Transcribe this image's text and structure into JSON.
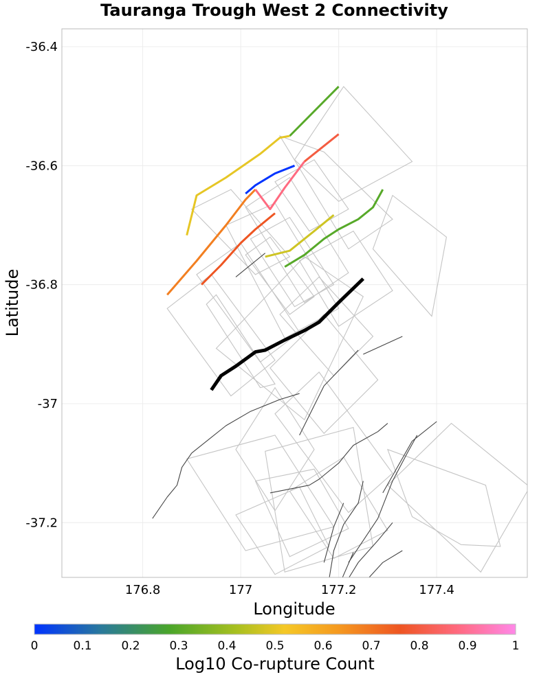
{
  "chart_data": {
    "type": "map",
    "title": "Tauranga Trough West 2 Connectivity",
    "xlabel": "Longitude",
    "ylabel": "Latitude",
    "xlim": [
      176.635,
      177.585
    ],
    "ylim": [
      -37.292,
      -36.37
    ],
    "x_ticks": [
      176.8,
      177.0,
      177.2,
      177.4
    ],
    "x_tick_labels": [
      "176.8",
      "177",
      "177.2",
      "177.4"
    ],
    "y_ticks": [
      -36.4,
      -36.6,
      -36.8,
      -37.0,
      -37.2
    ],
    "y_tick_labels": [
      "-36.4",
      "-36.6",
      "-36.8",
      "-37",
      "-37.2"
    ],
    "grid": true,
    "colorbar": {
      "label": "Log10 Co-rupture Count",
      "range": [
        0,
        1
      ],
      "ticks": [
        "0",
        "0.1",
        "0.2",
        "0.3",
        "0.4",
        "0.5",
        "0.6",
        "0.7",
        "0.8",
        "0.9",
        "1"
      ],
      "stops": [
        {
          "v": 0.0,
          "color": "#0033ff"
        },
        {
          "v": 0.14,
          "color": "#2a7a9a"
        },
        {
          "v": 0.28,
          "color": "#4aa52a"
        },
        {
          "v": 0.42,
          "color": "#a8c020"
        },
        {
          "v": 0.52,
          "color": "#f5c826"
        },
        {
          "v": 0.63,
          "color": "#f59a20"
        },
        {
          "v": 0.76,
          "color": "#ee5522"
        },
        {
          "v": 0.88,
          "color": "#ff6a80"
        },
        {
          "v": 1.0,
          "color": "#ff88e8"
        }
      ]
    },
    "highlighted_fault": {
      "name": "Tauranga Trough West 2",
      "color": "#000000",
      "trace": [
        [
          176.94,
          -36.977
        ],
        [
          176.96,
          -36.953
        ],
        [
          176.99,
          -36.937
        ],
        [
          177.03,
          -36.913
        ],
        [
          177.05,
          -36.91
        ],
        [
          177.09,
          -36.893
        ],
        [
          177.13,
          -36.877
        ],
        [
          177.16,
          -36.863
        ],
        [
          177.2,
          -36.83
        ],
        [
          177.25,
          -36.79
        ]
      ]
    },
    "connected_faults": [
      {
        "value": 0.3,
        "trace": [
          [
            177.1,
            -36.55
          ],
          [
            177.2,
            -36.467
          ]
        ]
      },
      {
        "value": 0.5,
        "trace": [
          [
            176.89,
            -36.717
          ],
          [
            176.91,
            -36.65
          ],
          [
            176.97,
            -36.62
          ],
          [
            177.04,
            -36.58
          ],
          [
            177.08,
            -36.553
          ],
          [
            177.1,
            -36.55
          ]
        ]
      },
      {
        "value": 0.0,
        "trace": [
          [
            177.01,
            -36.647
          ],
          [
            177.03,
            -36.633
          ],
          [
            177.07,
            -36.613
          ],
          [
            177.11,
            -36.6
          ]
        ]
      },
      {
        "value": 0.68,
        "trace": [
          [
            176.85,
            -36.817
          ],
          [
            176.91,
            -36.76
          ],
          [
            176.97,
            -36.7
          ],
          [
            177.01,
            -36.657
          ],
          [
            177.03,
            -36.64
          ]
        ]
      },
      {
        "value": 0.88,
        "trace": [
          [
            177.03,
            -36.64
          ],
          [
            177.06,
            -36.673
          ],
          [
            177.09,
            -36.637
          ],
          [
            177.13,
            -36.593
          ]
        ]
      },
      {
        "value": 0.8,
        "trace": [
          [
            177.13,
            -36.593
          ],
          [
            177.2,
            -36.547
          ]
        ]
      },
      {
        "value": 0.76,
        "trace": [
          [
            176.92,
            -36.8
          ],
          [
            176.96,
            -36.767
          ],
          [
            177.0,
            -36.73
          ],
          [
            177.03,
            -36.707
          ],
          [
            177.07,
            -36.68
          ]
        ]
      },
      {
        "value": 0.47,
        "trace": [
          [
            177.05,
            -36.753
          ],
          [
            177.1,
            -36.743
          ],
          [
            177.15,
            -36.71
          ],
          [
            177.19,
            -36.683
          ]
        ]
      },
      {
        "value": 0.3,
        "trace": [
          [
            177.09,
            -36.77
          ],
          [
            177.13,
            -36.75
          ],
          [
            177.17,
            -36.723
          ],
          [
            177.2,
            -36.707
          ],
          [
            177.24,
            -36.69
          ],
          [
            177.27,
            -36.67
          ],
          [
            177.29,
            -36.64
          ]
        ]
      }
    ],
    "gray_faults": [
      [
        [
          176.99,
          -36.787
        ],
        [
          177.05,
          -36.747
        ]
      ],
      [
        [
          177.25,
          -36.917
        ],
        [
          177.33,
          -36.887
        ]
      ],
      [
        [
          177.17,
          -36.97
        ],
        [
          177.24,
          -36.91
        ]
      ],
      [
        [
          177.12,
          -37.053
        ],
        [
          177.17,
          -36.97
        ]
      ],
      [
        [
          176.9,
          -37.083
        ],
        [
          176.97,
          -37.037
        ],
        [
          177.02,
          -37.013
        ],
        [
          177.08,
          -36.993
        ],
        [
          177.12,
          -36.983
        ]
      ],
      [
        [
          176.82,
          -37.193
        ],
        [
          176.85,
          -37.157
        ],
        [
          176.87,
          -37.137
        ],
        [
          176.88,
          -37.107
        ],
        [
          176.9,
          -37.083
        ]
      ],
      [
        [
          177.06,
          -37.15
        ],
        [
          177.14,
          -37.137
        ],
        [
          177.16,
          -37.127
        ],
        [
          177.2,
          -37.1
        ],
        [
          177.23,
          -37.07
        ],
        [
          177.28,
          -37.047
        ],
        [
          177.3,
          -37.033
        ]
      ],
      [
        [
          177.17,
          -37.267
        ],
        [
          177.19,
          -37.207
        ],
        [
          177.21,
          -37.167
        ]
      ],
      [
        [
          177.18,
          -37.297
        ],
        [
          177.19,
          -37.247
        ],
        [
          177.21,
          -37.203
        ],
        [
          177.24,
          -37.167
        ],
        [
          177.25,
          -37.13
        ]
      ],
      [
        [
          177.2,
          -37.307
        ],
        [
          177.23,
          -37.25
        ]
      ],
      [
        [
          177.22,
          -37.267
        ],
        [
          177.25,
          -37.23
        ],
        [
          177.28,
          -37.193
        ],
        [
          177.31,
          -37.13
        ],
        [
          177.34,
          -37.083
        ],
        [
          177.36,
          -37.053
        ]
      ],
      [
        [
          177.21,
          -37.307
        ],
        [
          177.24,
          -37.267
        ],
        [
          177.28,
          -37.23
        ],
        [
          177.31,
          -37.2
        ]
      ],
      [
        [
          177.25,
          -37.303
        ],
        [
          177.29,
          -37.267
        ],
        [
          177.33,
          -37.247
        ]
      ],
      [
        [
          177.29,
          -37.15
        ],
        [
          177.35,
          -37.063
        ],
        [
          177.4,
          -37.03
        ]
      ]
    ],
    "rupture_boxes": [
      [
        [
          177.21,
          -36.467
        ],
        [
          177.35,
          -36.593
        ],
        [
          177.2,
          -36.66
        ],
        [
          177.11,
          -36.59
        ]
      ],
      [
        [
          177.08,
          -36.55
        ],
        [
          177.22,
          -36.74
        ],
        [
          177.31,
          -36.69
        ],
        [
          177.17,
          -36.577
        ]
      ],
      [
        [
          176.97,
          -36.7
        ],
        [
          177.09,
          -36.89
        ],
        [
          177.2,
          -36.84
        ],
        [
          177.07,
          -36.663
        ]
      ],
      [
        [
          176.91,
          -36.783
        ],
        [
          177.04,
          -36.93
        ],
        [
          177.12,
          -36.88
        ],
        [
          177.0,
          -36.73
        ]
      ],
      [
        [
          177.01,
          -36.75
        ],
        [
          177.1,
          -36.85
        ],
        [
          177.15,
          -36.82
        ],
        [
          177.06,
          -36.72
        ]
      ],
      [
        [
          177.12,
          -36.76
        ],
        [
          177.2,
          -36.87
        ],
        [
          177.31,
          -36.81
        ],
        [
          177.23,
          -36.71
        ]
      ],
      [
        [
          176.9,
          -36.673
        ],
        [
          177.03,
          -36.783
        ],
        [
          177.1,
          -36.753
        ],
        [
          176.98,
          -36.64
        ]
      ],
      [
        [
          176.85,
          -36.84
        ],
        [
          176.98,
          -36.987
        ],
        [
          177.07,
          -36.927
        ],
        [
          176.94,
          -36.783
        ]
      ],
      [
        [
          176.93,
          -36.833
        ],
        [
          177.04,
          -36.973
        ],
        [
          177.07,
          -36.967
        ],
        [
          176.95,
          -36.817
        ]
      ],
      [
        [
          177.07,
          -36.627
        ],
        [
          177.14,
          -36.71
        ],
        [
          177.22,
          -36.673
        ],
        [
          177.15,
          -36.59
        ]
      ],
      [
        [
          177.02,
          -36.723
        ],
        [
          177.11,
          -36.837
        ],
        [
          177.19,
          -36.8
        ],
        [
          177.1,
          -36.687
        ]
      ],
      [
        [
          176.95,
          -36.907
        ],
        [
          177.13,
          -37.027
        ],
        [
          177.25,
          -36.82
        ],
        [
          177.13,
          -36.753
        ]
      ],
      [
        [
          177.27,
          -36.74
        ],
        [
          177.39,
          -36.853
        ],
        [
          177.42,
          -36.72
        ],
        [
          177.31,
          -36.65
        ]
      ],
      [
        [
          177.08,
          -36.85
        ],
        [
          177.19,
          -36.953
        ],
        [
          177.27,
          -36.887
        ],
        [
          177.16,
          -36.787
        ]
      ],
      [
        [
          177.01,
          -36.67
        ],
        [
          177.13,
          -36.83
        ],
        [
          177.22,
          -36.78
        ],
        [
          177.1,
          -36.62
        ]
      ],
      [
        [
          177.06,
          -36.94
        ],
        [
          177.17,
          -37.05
        ],
        [
          177.28,
          -36.96
        ],
        [
          177.17,
          -36.85
        ]
      ],
      [
        [
          176.99,
          -37.077
        ],
        [
          177.07,
          -37.18
        ],
        [
          177.15,
          -37.077
        ],
        [
          177.07,
          -36.973
        ]
      ],
      [
        [
          177.07,
          -37.017
        ],
        [
          177.22,
          -37.183
        ],
        [
          177.31,
          -37.117
        ],
        [
          177.16,
          -36.947
        ]
      ],
      [
        [
          177.05,
          -37.08
        ],
        [
          177.09,
          -37.283
        ],
        [
          177.27,
          -37.24
        ],
        [
          177.23,
          -37.04
        ]
      ],
      [
        [
          176.89,
          -37.093
        ],
        [
          177.01,
          -37.247
        ],
        [
          177.19,
          -37.207
        ],
        [
          177.07,
          -37.053
        ]
      ],
      [
        [
          177.03,
          -37.13
        ],
        [
          177.1,
          -37.257
        ],
        [
          177.22,
          -37.21
        ],
        [
          177.15,
          -37.11
        ]
      ],
      [
        [
          176.99,
          -37.187
        ],
        [
          177.07,
          -37.287
        ],
        [
          177.18,
          -37.24
        ],
        [
          177.12,
          -37.14
        ]
      ],
      [
        [
          177.3,
          -37.137
        ],
        [
          177.49,
          -37.283
        ],
        [
          177.59,
          -37.14
        ],
        [
          177.43,
          -37.033
        ]
      ],
      [
        [
          177.3,
          -37.077
        ],
        [
          177.35,
          -37.19
        ],
        [
          177.45,
          -37.237
        ],
        [
          177.53,
          -37.24
        ],
        [
          177.5,
          -37.137
        ]
      ],
      [
        [
          177.1,
          -37.147
        ],
        [
          177.19,
          -37.26
        ],
        [
          177.3,
          -37.213
        ],
        [
          177.21,
          -37.09
        ]
      ]
    ]
  }
}
